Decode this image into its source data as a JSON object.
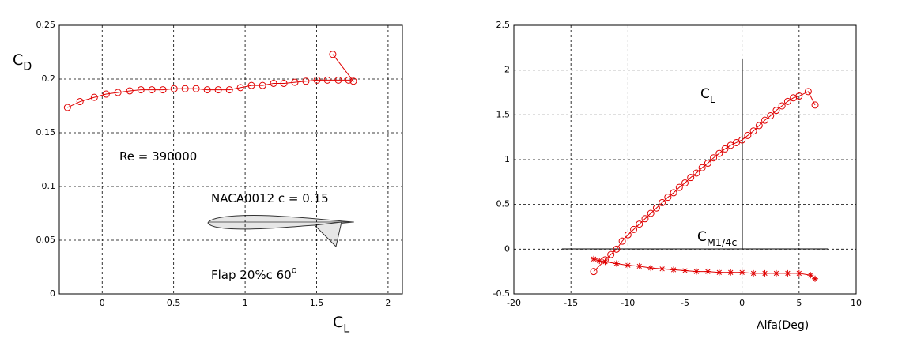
{
  "chart_data": [
    {
      "type": "line",
      "y_label": {
        "text": "C",
        "sub": "D"
      },
      "x_label": {
        "text": "C",
        "sub": "L"
      },
      "xlim": [
        -0.3,
        2.1
      ],
      "xticks": [
        0,
        0.5,
        1,
        1.5,
        2
      ],
      "ylim": [
        0,
        0.25
      ],
      "yticks": [
        0,
        0.05,
        0.1,
        0.15,
        0.2,
        0.25
      ],
      "grid": true,
      "annotations": [
        {
          "text": "Re = 390000"
        },
        {
          "text": "NACA0012  c = 0.15"
        },
        {
          "text": "Flap 20%c 60",
          "sup": "o"
        }
      ],
      "series": [
        {
          "color": "#e00000",
          "marker": "circle",
          "x": [
            -0.243,
            -0.155,
            -0.055,
            0.028,
            0.11,
            0.193,
            0.271,
            0.348,
            0.425,
            0.503,
            0.58,
            0.657,
            0.735,
            0.812,
            0.89,
            0.967,
            1.044,
            1.122,
            1.199,
            1.271,
            1.348,
            1.425,
            1.503,
            1.575,
            1.652,
            1.724,
            1.757,
            1.613
          ],
          "values": [
            0.1735,
            0.179,
            0.183,
            0.186,
            0.1875,
            0.189,
            0.19,
            0.19,
            0.19,
            0.191,
            0.191,
            0.191,
            0.19,
            0.19,
            0.19,
            0.192,
            0.194,
            0.194,
            0.196,
            0.196,
            0.197,
            0.198,
            0.199,
            0.199,
            0.199,
            0.199,
            0.198,
            0.223
          ]
        }
      ]
    },
    {
      "type": "line",
      "x_label": {
        "text": "Alfa(Deg)"
      },
      "xlim": [
        -20,
        10
      ],
      "xticks": [
        -20,
        -15,
        -10,
        -5,
        0,
        5,
        10
      ],
      "ylim": [
        -0.5,
        2.5
      ],
      "yticks": [
        -0.5,
        0,
        0.5,
        1,
        1.5,
        2,
        2.5
      ],
      "grid": true,
      "annotations": [
        {
          "text": "C",
          "sub": "L"
        },
        {
          "text": "C",
          "sub": "M1/4c"
        }
      ],
      "series": [
        {
          "color": "#e00000",
          "marker": "circle",
          "x": [
            -13,
            -12,
            -11.5,
            -11,
            -10.5,
            -10,
            -9.5,
            -9,
            -8.5,
            -8,
            -7.5,
            -7,
            -6.5,
            -6,
            -5.5,
            -5,
            -4.5,
            -4,
            -3.5,
            -3,
            -2.5,
            -2,
            -1.5,
            -1,
            -0.5,
            0,
            0.5,
            1,
            1.5,
            2,
            2.5,
            3,
            3.5,
            4,
            4.5,
            5,
            5.8,
            6.4
          ],
          "values": [
            -0.25,
            -0.12,
            -0.06,
            0.0,
            0.09,
            0.16,
            0.22,
            0.28,
            0.34,
            0.4,
            0.46,
            0.52,
            0.58,
            0.63,
            0.69,
            0.74,
            0.8,
            0.85,
            0.91,
            0.96,
            1.02,
            1.07,
            1.12,
            1.16,
            1.19,
            1.22,
            1.27,
            1.32,
            1.38,
            1.44,
            1.49,
            1.55,
            1.6,
            1.65,
            1.69,
            1.71,
            1.76,
            1.61
          ]
        },
        {
          "color": "#e00000",
          "marker": "star",
          "x": [
            -13,
            -12.5,
            -12,
            -11,
            -10,
            -9,
            -8,
            -7,
            -6,
            -5,
            -4,
            -3,
            -2,
            -1,
            0,
            1,
            2,
            3,
            4,
            5,
            6,
            6.4
          ],
          "values": [
            -0.11,
            -0.13,
            -0.14,
            -0.16,
            -0.18,
            -0.19,
            -0.21,
            -0.22,
            -0.23,
            -0.24,
            -0.25,
            -0.25,
            -0.26,
            -0.26,
            -0.26,
            -0.27,
            -0.27,
            -0.27,
            -0.27,
            -0.27,
            -0.29,
            -0.33
          ]
        }
      ]
    }
  ]
}
